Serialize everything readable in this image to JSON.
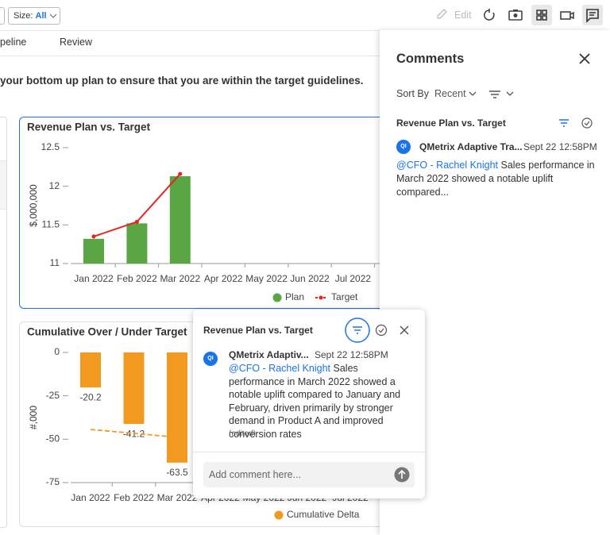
{
  "toolbar": {
    "size_label": "Size:",
    "size_value": "All",
    "edit": "Edit"
  },
  "tabs": [
    "peline",
    "Review"
  ],
  "instruction": "your bottom up plan to ensure that you are within the target guidelines.",
  "chart_data": [
    {
      "type": "bar",
      "title": "Revenue Plan vs. Target",
      "y_label": "$,000,000",
      "categories": [
        "Jan 2022",
        "Feb 2022",
        "Mar 2022",
        "Apr 2022",
        "May 2022",
        "Jun 2022",
        "Jul 2022"
      ],
      "ylim": [
        11,
        12.5
      ],
      "yticks": [
        11,
        11.5,
        12,
        12.5
      ],
      "series": [
        {
          "name": "Plan",
          "type": "bar",
          "color": "#5aa645",
          "values": [
            11.32,
            11.52,
            12.13,
            null,
            null,
            null,
            null
          ]
        },
        {
          "name": "Target",
          "type": "line",
          "color": "#e8231f",
          "values": [
            11.35,
            11.54,
            12.16,
            null,
            null,
            null,
            null
          ]
        }
      ]
    },
    {
      "type": "bar",
      "title": "Cumulative Over / Under Target",
      "y_label": "#,000",
      "categories": [
        "Jan 2022",
        "Feb 2022",
        "Mar 2022",
        "Apr 2022",
        "May 2022",
        "Jun 2022",
        "Jul 2022"
      ],
      "ylim": [
        -75,
        0
      ],
      "yticks": [
        0,
        -25,
        -50,
        -75
      ],
      "series": [
        {
          "name": "Cumulative Delta",
          "type": "bar",
          "color": "#f29a1f",
          "values": [
            -20.2,
            -41.2,
            -63.5,
            null,
            null,
            null,
            null
          ]
        },
        {
          "type": "line",
          "color": "#f29a1f",
          "values": [
            -44.4,
            -46.6,
            -48.9,
            null,
            null,
            null,
            null
          ]
        }
      ]
    }
  ],
  "comments_panel": {
    "title": "Comments",
    "sort_label": "Sort By",
    "sort_value": "Recent",
    "group_title": "Revenue Plan vs. Target",
    "avatar": "QI",
    "author": "QMetrix Adaptive Tra...",
    "date": "Sept 22 12:58PM",
    "mention": "@CFO - Rachel Knight",
    "text": "Sales performance in March 2022 showed a notable uplift compared..."
  },
  "popup": {
    "title": "Revenue Plan vs. Target",
    "avatar": "QI",
    "author": "QMetrix Adaptiv...",
    "date": "Sept 22 12:58PM",
    "mention": "@CFO - Rachel Knight",
    "text": "Sales performance in March 2022 showed a notable uplift compared to January and February, driven primarily by stronger demand in Product A and improved conversion rates",
    "edited": "(edited)",
    "placeholder": "Add comment here..."
  }
}
